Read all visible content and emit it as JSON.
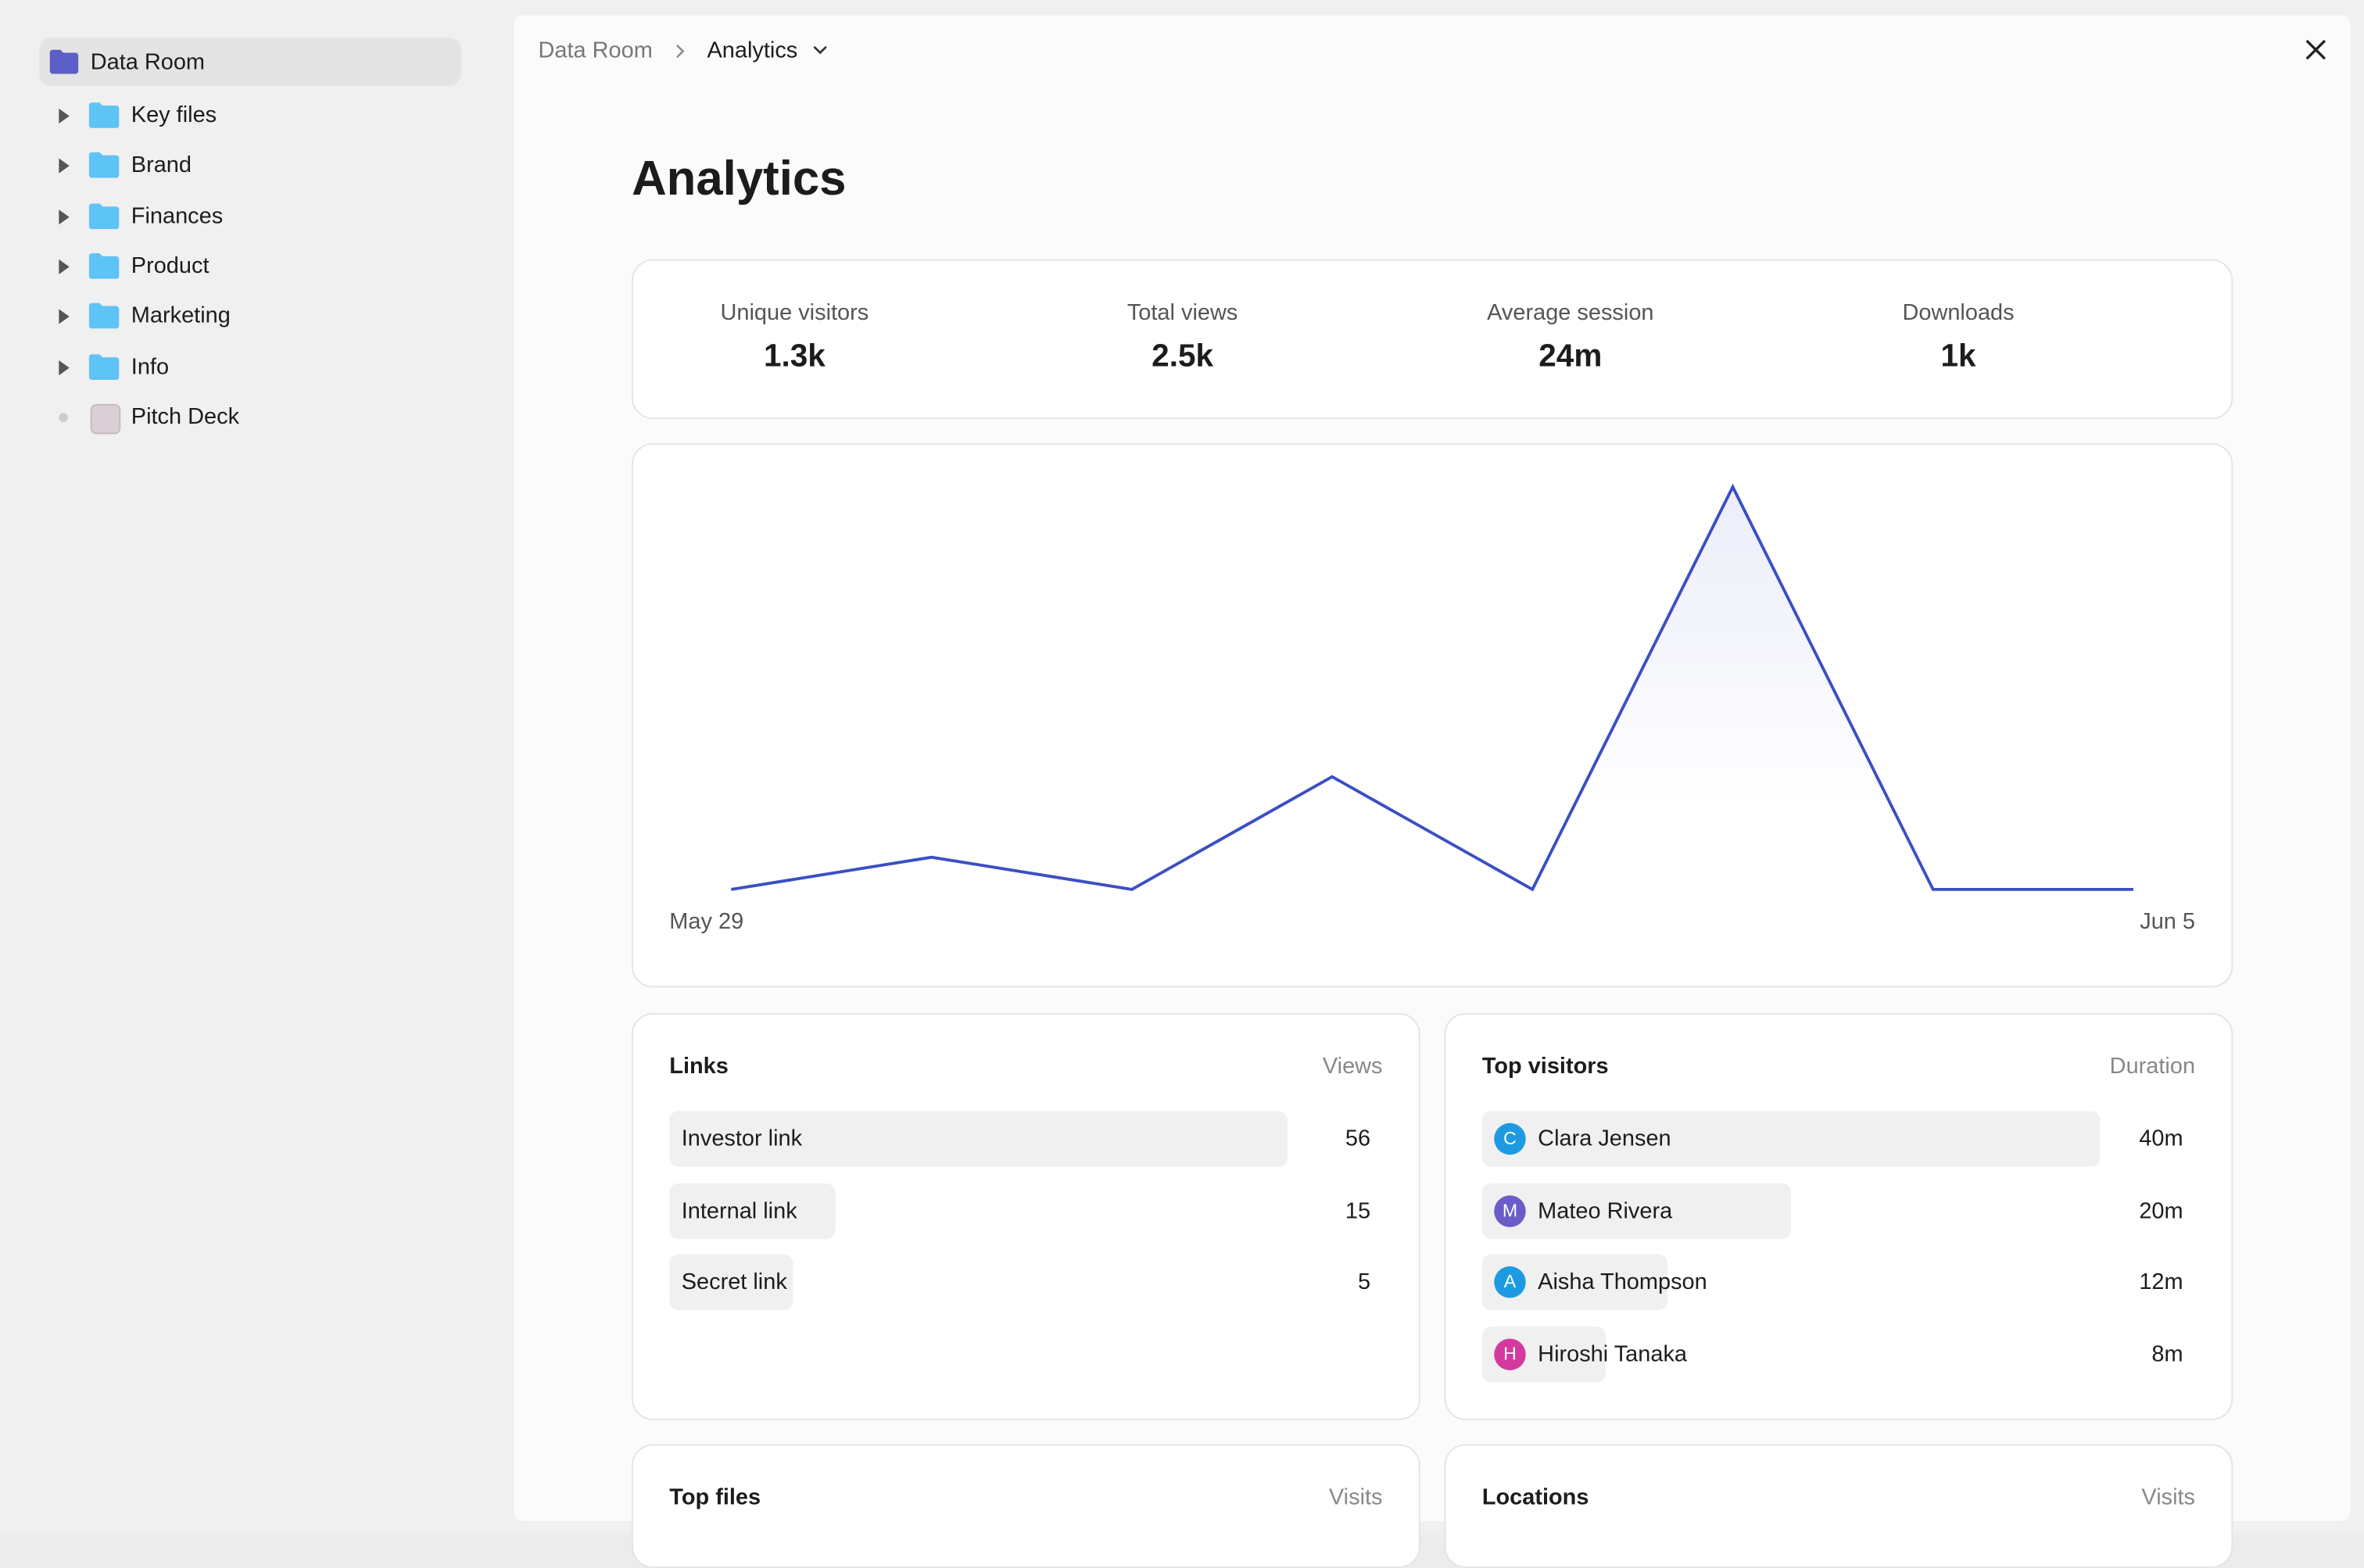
{
  "sidebar": {
    "root": "Data Room",
    "items": [
      {
        "label": "Key files",
        "kind": "folder"
      },
      {
        "label": "Brand",
        "kind": "folder"
      },
      {
        "label": "Finances",
        "kind": "folder"
      },
      {
        "label": "Product",
        "kind": "folder"
      },
      {
        "label": "Marketing",
        "kind": "folder"
      },
      {
        "label": "Info",
        "kind": "folder"
      },
      {
        "label": "Pitch Deck",
        "kind": "file"
      }
    ]
  },
  "breadcrumb": {
    "parent": "Data Room",
    "current": "Analytics"
  },
  "title": "Analytics",
  "stats": [
    {
      "label": "Unique visitors",
      "value": "1.3k"
    },
    {
      "label": "Total views",
      "value": "2.5k"
    },
    {
      "label": "Average session",
      "value": "24m"
    },
    {
      "label": "Downloads",
      "value": "1k"
    }
  ],
  "chart_data": {
    "type": "line",
    "categories": [
      "May 29",
      null,
      null,
      null,
      null,
      null,
      null,
      "Jun 5"
    ],
    "values": [
      0,
      8,
      0,
      28,
      0,
      100,
      0,
      0
    ],
    "color": "#3b4fc4"
  },
  "links": {
    "title": "Links",
    "column": "Views",
    "rows": [
      {
        "name": "Investor link",
        "views": 56
      },
      {
        "name": "Internal link",
        "views": 15
      },
      {
        "name": "Secret link",
        "views": 5
      }
    ]
  },
  "visitors": {
    "title": "Top visitors",
    "column": "Duration",
    "rows": [
      {
        "initial": "C",
        "name": "Clara Jensen",
        "duration": "40m",
        "color": "#1e9be0"
      },
      {
        "initial": "M",
        "name": "Mateo Rivera",
        "duration": "20m",
        "color": "#6a5cc9"
      },
      {
        "initial": "A",
        "name": "Aisha Thompson",
        "duration": "12m",
        "color": "#1e9be0"
      },
      {
        "initial": "H",
        "name": "Hiroshi Tanaka",
        "duration": "8m",
        "color": "#d43a9e"
      }
    ]
  },
  "files": {
    "title": "Top files",
    "column": "Visits"
  },
  "locations": {
    "title": "Locations",
    "column": "Visits"
  }
}
